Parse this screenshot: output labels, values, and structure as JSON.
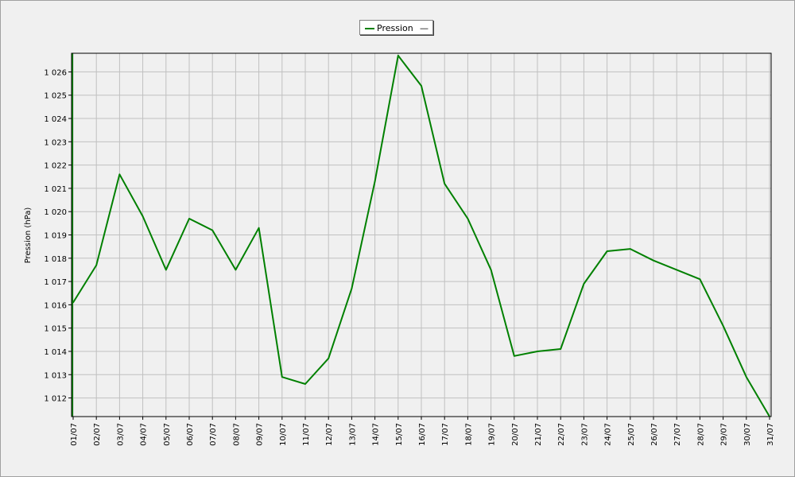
{
  "chart_data": {
    "type": "line",
    "title": "",
    "xlabel": "",
    "ylabel": "Pression (hPa)",
    "legend_position": "top-center",
    "grid": true,
    "ylim": [
      1011.2,
      1026.8
    ],
    "yticks": [
      1012,
      1013,
      1014,
      1015,
      1016,
      1017,
      1018,
      1019,
      1020,
      1021,
      1022,
      1023,
      1024,
      1025,
      1026
    ],
    "ytick_labels": [
      "1 012",
      "1 013",
      "1 014",
      "1 015",
      "1 016",
      "1 017",
      "1 018",
      "1 019",
      "1 020",
      "1 021",
      "1 022",
      "1 023",
      "1 024",
      "1 025",
      "1 026"
    ],
    "categories": [
      "01/07",
      "02/07",
      "03/07",
      "04/07",
      "05/07",
      "06/07",
      "07/07",
      "08/07",
      "09/07",
      "10/07",
      "11/07",
      "12/07",
      "13/07",
      "14/07",
      "15/07",
      "16/07",
      "17/07",
      "18/07",
      "19/07",
      "20/07",
      "21/07",
      "22/07",
      "23/07",
      "24/07",
      "25/07",
      "26/07",
      "27/07",
      "28/07",
      "29/07",
      "30/07",
      "31/07"
    ],
    "series": [
      {
        "name": "Pression",
        "color": "#008000",
        "values": [
          1016.1,
          1017.7,
          1021.6,
          1019.8,
          1017.5,
          1019.7,
          1019.2,
          1017.5,
          1019.3,
          1012.9,
          1012.6,
          1013.7,
          1016.7,
          1021.3,
          1026.7,
          1025.4,
          1021.2,
          1019.7,
          1017.5,
          1013.8,
          1014.0,
          1014.1,
          1016.9,
          1018.3,
          1018.4,
          1017.9,
          1017.5,
          1017.1,
          1015.1,
          1012.9,
          1011.2
        ]
      }
    ]
  },
  "legend": {
    "label": "Pression",
    "dash": "—"
  }
}
